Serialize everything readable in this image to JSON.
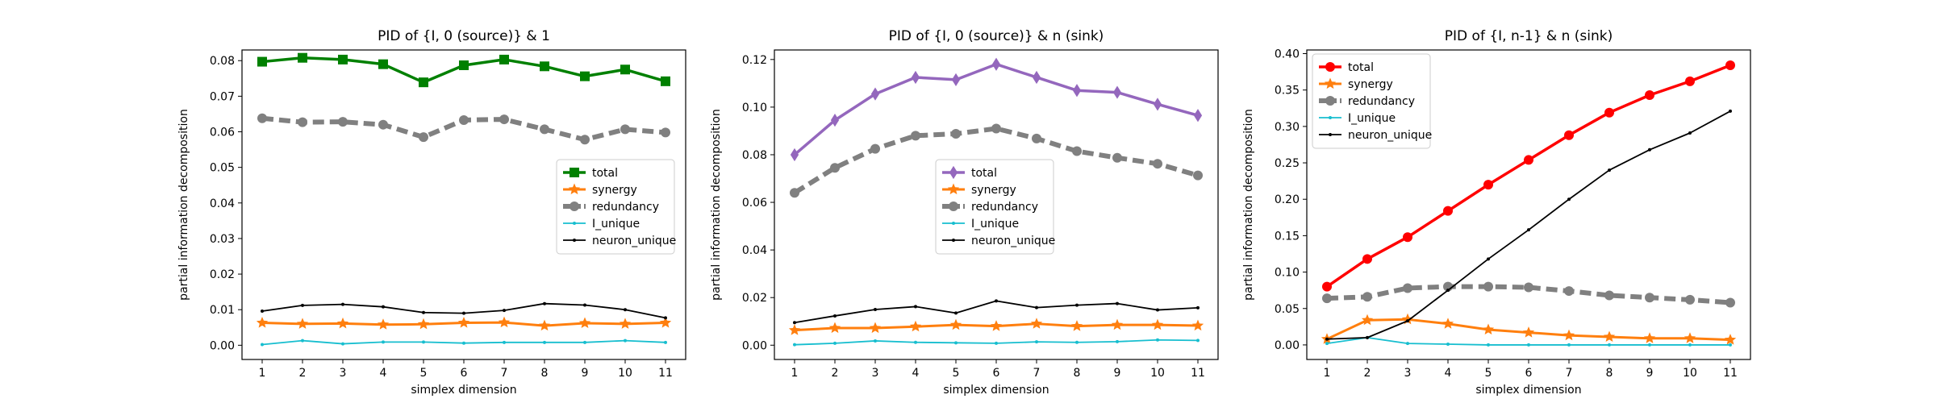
{
  "chart_data": [
    {
      "type": "line",
      "title": "PID of {I, 0 (source)} & 1",
      "xlabel": "simplex dimension",
      "ylabel": "partial information decomposition",
      "x": [
        1,
        2,
        3,
        4,
        5,
        6,
        7,
        8,
        9,
        10,
        11
      ],
      "xlim": [
        0.5,
        11.5
      ],
      "ylim": [
        -0.004,
        0.083
      ],
      "yticks": [
        0.0,
        0.01,
        0.02,
        0.03,
        0.04,
        0.05,
        0.06,
        0.07,
        0.08
      ],
      "ytick_labels": [
        "0.00",
        "0.01",
        "0.02",
        "0.03",
        "0.04",
        "0.05",
        "0.06",
        "0.07",
        "0.08"
      ],
      "legend": "center-right",
      "grid": false,
      "series": [
        {
          "name": "total",
          "color": "#008000",
          "marker": "square",
          "values": [
            0.0797,
            0.0808,
            0.0803,
            0.079,
            0.0739,
            0.0787,
            0.0803,
            0.0784,
            0.0756,
            0.0775,
            0.0742
          ]
        },
        {
          "name": "synergy",
          "color": "#ff7f0e",
          "marker": "star",
          "values": [
            0.0063,
            0.006,
            0.0061,
            0.0058,
            0.0059,
            0.0063,
            0.0064,
            0.0055,
            0.0062,
            0.006,
            0.0063
          ]
        },
        {
          "name": "redundancy",
          "color": "#808080",
          "marker": "circle",
          "values": [
            0.0638,
            0.0627,
            0.0628,
            0.062,
            0.0585,
            0.0633,
            0.0635,
            0.0607,
            0.0578,
            0.0607,
            0.0598
          ]
        },
        {
          "name": "I_unique",
          "color": "#17becf",
          "marker": "dot",
          "values": [
            0.0002,
            0.0013,
            0.0004,
            0.0009,
            0.0009,
            0.0006,
            0.0008,
            0.0008,
            0.0008,
            0.0013,
            0.0008
          ]
        },
        {
          "name": "neuron_unique",
          "color": "#000000",
          "marker": "dot",
          "values": [
            0.0096,
            0.0112,
            0.0115,
            0.0108,
            0.0092,
            0.009,
            0.0098,
            0.0117,
            0.0113,
            0.01,
            0.0077
          ]
        }
      ]
    },
    {
      "type": "line",
      "title": "PID of {I, 0 (source)} & n (sink)",
      "xlabel": "simplex dimension",
      "ylabel": "partial information decomposition",
      "x": [
        1,
        2,
        3,
        4,
        5,
        6,
        7,
        8,
        9,
        10,
        11
      ],
      "xlim": [
        0.5,
        11.5
      ],
      "ylim": [
        -0.006,
        0.124
      ],
      "yticks": [
        0.0,
        0.02,
        0.04,
        0.06,
        0.08,
        0.1,
        0.12
      ],
      "ytick_labels": [
        "0.00",
        "0.02",
        "0.04",
        "0.06",
        "0.08",
        "0.10",
        "0.12"
      ],
      "legend": "center",
      "grid": false,
      "series": [
        {
          "name": "total",
          "color": "#9467bd",
          "marker": "diamond",
          "values": [
            0.08,
            0.0945,
            0.1055,
            0.1125,
            0.1115,
            0.118,
            0.1125,
            0.107,
            0.1062,
            0.1012,
            0.0965
          ]
        },
        {
          "name": "synergy",
          "color": "#ff7f0e",
          "marker": "star",
          "values": [
            0.0063,
            0.0072,
            0.0072,
            0.0078,
            0.0085,
            0.008,
            0.009,
            0.008,
            0.0085,
            0.0085,
            0.0082
          ]
        },
        {
          "name": "redundancy",
          "color": "#808080",
          "marker": "circle",
          "values": [
            0.064,
            0.0745,
            0.0825,
            0.088,
            0.0888,
            0.091,
            0.0868,
            0.0815,
            0.0787,
            0.0762,
            0.0713
          ]
        },
        {
          "name": "I_unique",
          "color": "#17becf",
          "marker": "dot",
          "values": [
            0.0002,
            0.0008,
            0.0018,
            0.0012,
            0.001,
            0.0008,
            0.0014,
            0.0012,
            0.0015,
            0.0022,
            0.002
          ]
        },
        {
          "name": "neuron_unique",
          "color": "#000000",
          "marker": "dot",
          "values": [
            0.0095,
            0.0123,
            0.015,
            0.0162,
            0.0135,
            0.0186,
            0.0158,
            0.0168,
            0.0175,
            0.0148,
            0.0157
          ]
        }
      ]
    },
    {
      "type": "line",
      "title": "PID of {I, n-1} & n (sink)",
      "xlabel": "simplex dimension",
      "ylabel": "partial information decomposition",
      "x": [
        1,
        2,
        3,
        4,
        5,
        6,
        7,
        8,
        9,
        10,
        11
      ],
      "xlim": [
        0.5,
        11.5
      ],
      "ylim": [
        -0.02,
        0.405
      ],
      "yticks": [
        0.0,
        0.05,
        0.1,
        0.15,
        0.2,
        0.25,
        0.3,
        0.35,
        0.4
      ],
      "ytick_labels": [
        "0.00",
        "0.05",
        "0.10",
        "0.15",
        "0.20",
        "0.25",
        "0.30",
        "0.35",
        "0.40"
      ],
      "legend": "upper-left",
      "grid": false,
      "series": [
        {
          "name": "total",
          "color": "#ff0000",
          "marker": "circle",
          "values": [
            0.08,
            0.118,
            0.148,
            0.184,
            0.22,
            0.254,
            0.288,
            0.319,
            0.343,
            0.362,
            0.384
          ]
        },
        {
          "name": "synergy",
          "color": "#ff7f0e",
          "marker": "star",
          "values": [
            0.008,
            0.034,
            0.035,
            0.029,
            0.021,
            0.017,
            0.013,
            0.011,
            0.009,
            0.009,
            0.007
          ]
        },
        {
          "name": "redundancy",
          "color": "#808080",
          "marker": "circle",
          "values": [
            0.064,
            0.066,
            0.078,
            0.08,
            0.08,
            0.079,
            0.074,
            0.068,
            0.065,
            0.062,
            0.058
          ]
        },
        {
          "name": "I_unique",
          "color": "#17becf",
          "marker": "dot",
          "values": [
            0.002,
            0.01,
            0.002,
            0.001,
            0.0,
            0.0,
            0.0,
            0.0,
            0.0,
            0.0,
            0.0
          ]
        },
        {
          "name": "neuron_unique",
          "color": "#000000",
          "marker": "dot",
          "values": [
            0.008,
            0.01,
            0.033,
            0.075,
            0.118,
            0.158,
            0.2,
            0.24,
            0.268,
            0.291,
            0.321
          ]
        }
      ]
    }
  ]
}
